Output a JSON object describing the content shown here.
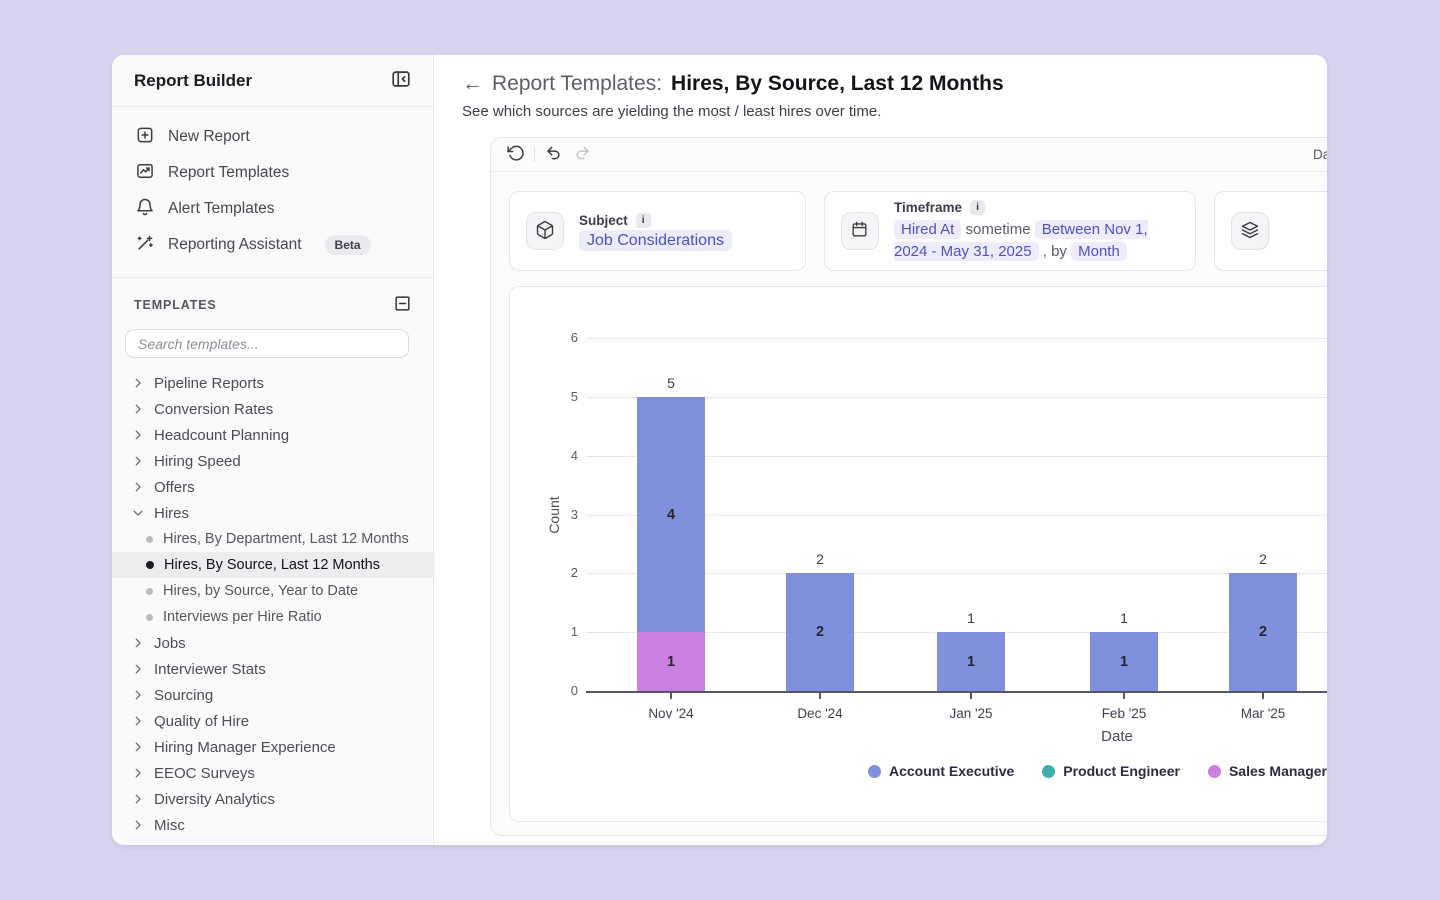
{
  "sidebar": {
    "title": "Report Builder",
    "nav": [
      {
        "label": "New Report",
        "icon": "new-report-icon"
      },
      {
        "label": "Report Templates",
        "icon": "report-templates-icon"
      },
      {
        "label": "Alert Templates",
        "icon": "alert-templates-icon"
      },
      {
        "label": "Reporting Assistant",
        "icon": "reporting-assistant-icon",
        "badge": "Beta"
      }
    ],
    "templates_header": "TEMPLATES",
    "search_placeholder": "Search templates...",
    "tree": [
      {
        "label": "Pipeline Reports",
        "state": "collapsed"
      },
      {
        "label": "Conversion Rates",
        "state": "collapsed"
      },
      {
        "label": "Headcount Planning",
        "state": "collapsed"
      },
      {
        "label": "Hiring Speed",
        "state": "collapsed"
      },
      {
        "label": "Offers",
        "state": "collapsed"
      },
      {
        "label": "Hires",
        "state": "expanded",
        "children": [
          {
            "label": "Hires, By Department, Last 12 Months",
            "selected": false
          },
          {
            "label": "Hires, By Source, Last 12 Months",
            "selected": true
          },
          {
            "label": "Hires, by Source, Year to Date",
            "selected": false
          },
          {
            "label": "Interviews per Hire Ratio",
            "selected": false
          }
        ]
      },
      {
        "label": "Jobs",
        "state": "collapsed"
      },
      {
        "label": "Interviewer Stats",
        "state": "collapsed"
      },
      {
        "label": "Sourcing",
        "state": "collapsed"
      },
      {
        "label": "Quality of Hire",
        "state": "collapsed"
      },
      {
        "label": "Hiring Manager Experience",
        "state": "collapsed"
      },
      {
        "label": "EEOC Surveys",
        "state": "collapsed"
      },
      {
        "label": "Diversity Analytics",
        "state": "collapsed"
      },
      {
        "label": "Misc",
        "state": "collapsed"
      }
    ]
  },
  "header": {
    "back_arrow": "←",
    "breadcrumb": "Report Templates:",
    "title": "Hires, By Source, Last 12 Months",
    "subtitle": "See which sources are yielding the most / least hires over time."
  },
  "toolbar": {
    "data_refresh_text": "Data re"
  },
  "filters": {
    "subject": {
      "label": "Subject",
      "value": "Job Considerations"
    },
    "timeframe": {
      "label": "Timeframe",
      "field": "Hired At",
      "connector": "sometime",
      "range": "Between Nov 1, 2024 - May 31, 2025",
      "comma_by": ", by",
      "granularity": "Month"
    }
  },
  "chart_data": {
    "type": "bar",
    "stacked": true,
    "title": "",
    "xlabel": "Date",
    "ylabel": "Count",
    "ylim": [
      0,
      6
    ],
    "ytick_step": 1,
    "grid": true,
    "legend_position": "bottom",
    "categories": [
      "Nov '24",
      "Dec '24",
      "Jan '25",
      "Feb '25",
      "Mar '25"
    ],
    "series": [
      {
        "name": "Account Executive",
        "color": "#8090dc",
        "values": [
          4,
          2,
          1,
          1,
          2
        ]
      },
      {
        "name": "Product Engineer",
        "color": "#3fada9",
        "values": [
          0,
          0,
          0,
          0,
          0
        ]
      },
      {
        "name": "Sales Manager",
        "color": "#ca80e0",
        "values": [
          1,
          0,
          0,
          0,
          0
        ]
      }
    ],
    "stack_order_bottom_to_top": [
      "Sales Manager",
      "Product Engineer",
      "Account Executive"
    ],
    "totals": [
      5,
      2,
      1,
      1,
      2
    ]
  }
}
